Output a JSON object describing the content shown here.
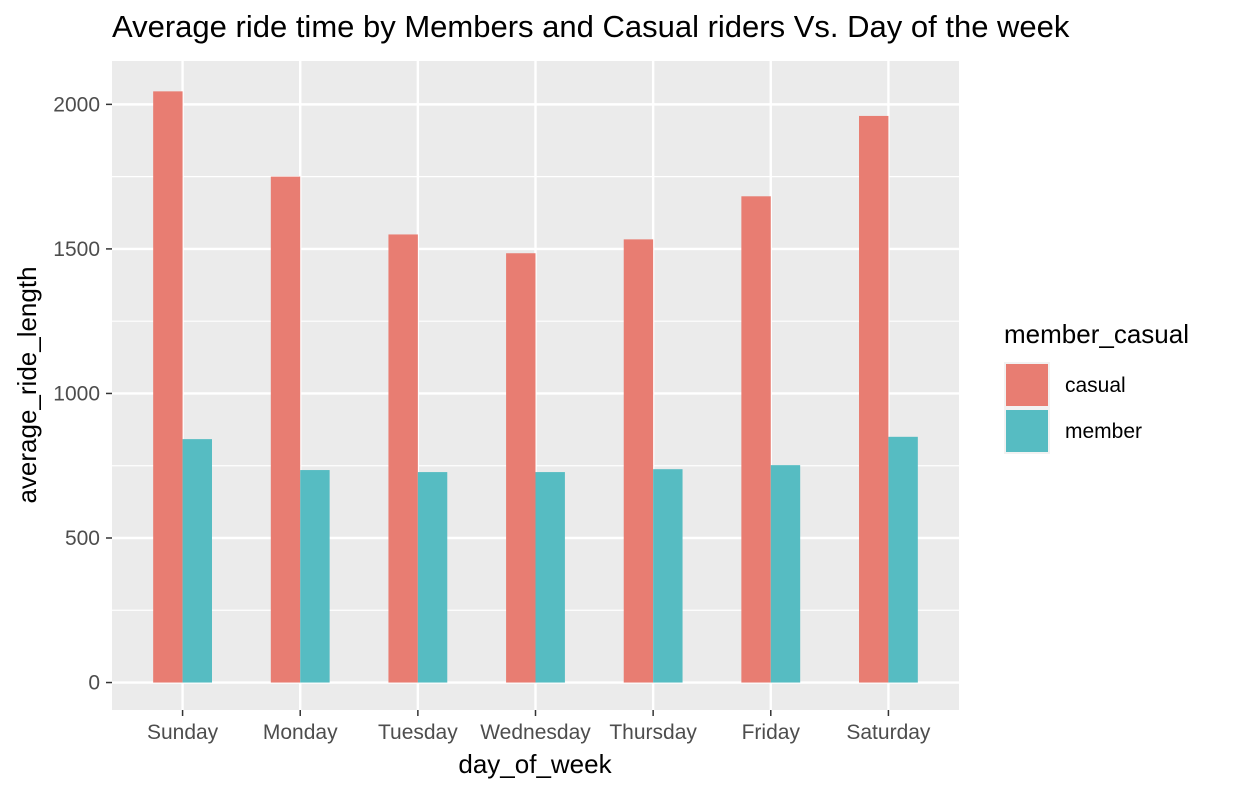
{
  "chart_data": {
    "type": "bar",
    "title": "Average ride time by Members and Casual riders Vs. Day of the week",
    "xlabel": "day_of_week",
    "ylabel": "average_ride_length",
    "categories": [
      "Sunday",
      "Monday",
      "Tuesday",
      "Wednesday",
      "Thursday",
      "Friday",
      "Saturday"
    ],
    "series": [
      {
        "name": "casual",
        "color": "#e87d72",
        "values": [
          2045,
          1750,
          1550,
          1485,
          1533,
          1682,
          1960
        ]
      },
      {
        "name": "member",
        "color": "#56bcc2",
        "values": [
          842,
          735,
          728,
          728,
          738,
          752,
          850
        ]
      }
    ],
    "ylim": [
      -95,
      2150
    ],
    "yticks": [
      0,
      500,
      1000,
      1500,
      2000
    ],
    "ytick_labels": [
      "0",
      "500",
      "1000",
      "1500",
      "2000"
    ],
    "grid": true,
    "legend": {
      "title": "member_casual",
      "position": "right"
    },
    "panel_background": "#ebebeb",
    "grid_color": "#ffffff"
  }
}
